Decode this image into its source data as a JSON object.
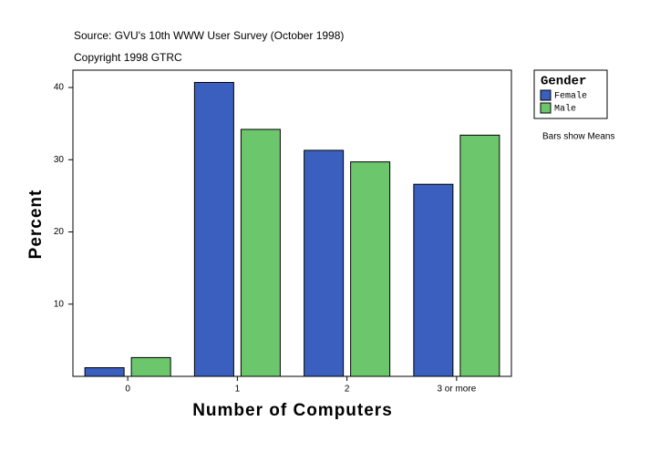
{
  "chart_data": {
    "type": "bar",
    "source": "Source: GVU's 10th WWW User Survey (October 1998)",
    "copyright": "Copyright 1998 GTRC",
    "x_label": "Number of Computers",
    "y_label": "Percent",
    "annotation": "Bars show Means",
    "legend_title": "Gender",
    "categories": [
      "0",
      "1",
      "2",
      "3 or more"
    ],
    "series": [
      {
        "name": "Female",
        "color": "#3a5fbf",
        "values": [
          1.2,
          40.7,
          31.3,
          26.6
        ]
      },
      {
        "name": "Male",
        "color": "#6cc76c",
        "values": [
          2.6,
          34.2,
          29.7,
          33.4
        ]
      }
    ],
    "ylim": [
      0,
      42.4
    ],
    "yticks": [
      10,
      20,
      30,
      40
    ]
  }
}
